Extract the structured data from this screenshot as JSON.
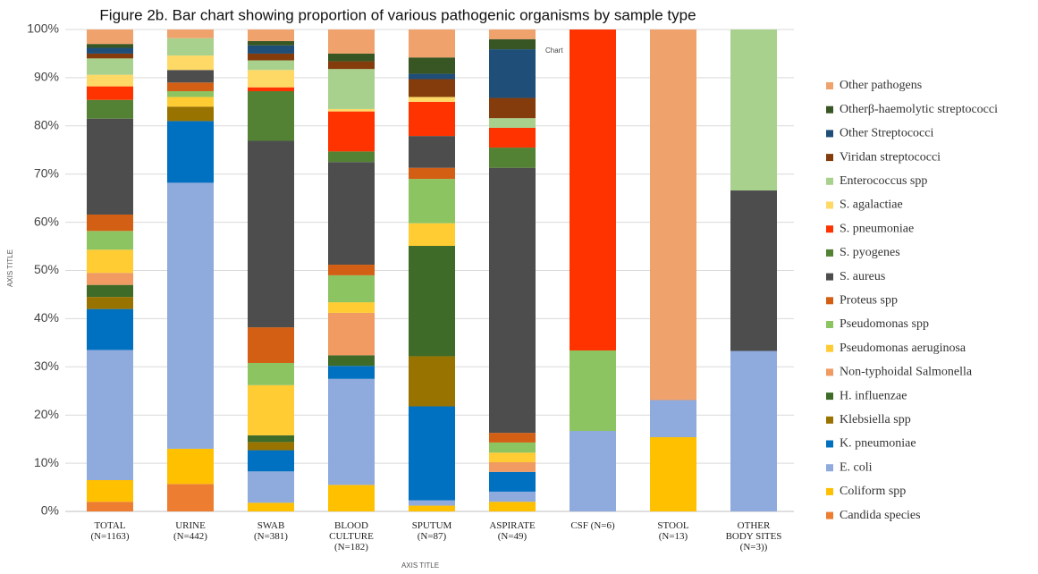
{
  "chart_data": {
    "type": "stacked_bar",
    "title": "Figure 2b. Bar chart showing proportion of various pathogenic organisms by sample type",
    "xlabel": "AXIS TITLE",
    "ylabel": "AXIS TITLE",
    "annotation": "Chart",
    "categories": [
      "TOTAL\n(N=1163)",
      "URINE\n(N=442)",
      "SWAB\n(N=381)",
      "BLOOD\nCULTURE\n(N=182)",
      "SPUTUM\n(N=87)",
      "ASPIRATE\n(N=49)",
      "CSF (N=6)",
      "STOOL\n(N=13)",
      "OTHER\nBODY SITES\n(N=3))"
    ],
    "ylim": [
      0,
      100
    ],
    "yticks": [
      {
        "value": 0,
        "label": "0%"
      },
      {
        "value": 10,
        "label": "10%"
      },
      {
        "value": 20,
        "label": "20%"
      },
      {
        "value": 30,
        "label": "30%"
      },
      {
        "value": 40,
        "label": "40%"
      },
      {
        "value": 50,
        "label": "50%"
      },
      {
        "value": 60,
        "label": "60%"
      },
      {
        "value": 70,
        "label": "70%"
      },
      {
        "value": 80,
        "label": "80%"
      },
      {
        "value": 90,
        "label": "90%"
      },
      {
        "value": 100,
        "label": "100%"
      }
    ],
    "grid": true,
    "legend": "right",
    "series": [
      {
        "name": "Candida species",
        "color": "#ED7D31",
        "values": [
          2,
          5.7,
          0,
          0,
          0,
          0,
          0,
          0,
          0
        ]
      },
      {
        "name": "Coliform spp",
        "color": "#FFC000",
        "values": [
          4.5,
          7.3,
          1.8,
          5.5,
          1.2,
          2,
          0,
          15.4,
          0
        ]
      },
      {
        "name": "E. coli",
        "color": "#8FAADC",
        "values": [
          27,
          55.2,
          6.5,
          22,
          1.1,
          2.1,
          16.7,
          7.7,
          33.3
        ]
      },
      {
        "name": "K. pneumoniae",
        "color": "#0070C0",
        "values": [
          8.5,
          12.8,
          4.4,
          2.7,
          19.5,
          4.1,
          0,
          0,
          0
        ]
      },
      {
        "name": "Klebsiella spp",
        "color": "#997300",
        "values": [
          2.5,
          3,
          1.7,
          0,
          10.4,
          0,
          0,
          0,
          0
        ]
      },
      {
        "name": "H. influenzae",
        "color": "#3E6B28",
        "values": [
          2.5,
          0,
          1.4,
          2.2,
          22.9,
          0,
          0,
          0,
          0
        ]
      },
      {
        "name": "Non-typhoidal Salmonella",
        "color": "#F19A61",
        "values": [
          2.5,
          0,
          0,
          8.8,
          0,
          2,
          0,
          0,
          0
        ]
      },
      {
        "name": "Pseudomonas aeruginosa",
        "color": "#FFCC33",
        "values": [
          4.8,
          2,
          10.4,
          2.2,
          4.7,
          2,
          0,
          0,
          0
        ]
      },
      {
        "name": "Pseudomonas spp",
        "color": "#8DC462",
        "values": [
          3.9,
          1.2,
          4.6,
          5.6,
          9.2,
          2.1,
          16.7,
          0,
          0
        ]
      },
      {
        "name": "Proteus spp",
        "color": "#D35F14",
        "values": [
          3.4,
          1.8,
          7.4,
          2.2,
          2.3,
          2,
          0,
          0,
          0
        ]
      },
      {
        "name": "S. aureus",
        "color": "#4D4D4D",
        "values": [
          19.9,
          2.6,
          38.7,
          21.3,
          6.6,
          55,
          0,
          0,
          33.3
        ]
      },
      {
        "name": "S. pyogenes",
        "color": "#548235",
        "values": [
          3.9,
          0,
          10.3,
          2.2,
          0,
          4.2,
          0,
          0,
          0
        ]
      },
      {
        "name": "S. pneumoniae",
        "color": "#FF3300",
        "values": [
          2.8,
          0,
          0.8,
          8.3,
          7.1,
          4.1,
          66.6,
          0,
          0
        ]
      },
      {
        "name": "S. agalactiae",
        "color": "#FFD966",
        "values": [
          2.4,
          3,
          3.6,
          0.5,
          1,
          0,
          0,
          0,
          0
        ]
      },
      {
        "name": "Enterococcus spp",
        "color": "#A9D18E",
        "values": [
          3.4,
          3.6,
          2,
          8.3,
          0,
          2,
          0,
          0,
          33.4
        ]
      },
      {
        "name": "Viridan streptococci",
        "color": "#843C0C",
        "values": [
          1,
          0,
          1.4,
          1.6,
          3.7,
          4.2,
          0,
          0,
          0
        ]
      },
      {
        "name": "Other Streptococci",
        "color": "#1F4E79",
        "values": [
          1.2,
          0,
          1.7,
          0,
          1.1,
          10.1,
          0,
          0,
          0
        ]
      },
      {
        "name": "Otherβ-haemolytic streptococci",
        "color": "#375623",
        "values": [
          0.8,
          0,
          0.9,
          1.6,
          3.4,
          2.1,
          0,
          0,
          0
        ]
      },
      {
        "name": "Other pathogens",
        "color": "#F0A26C",
        "values": [
          3,
          1.8,
          2.4,
          5,
          5.8,
          2,
          0,
          76.9,
          0
        ]
      }
    ]
  }
}
